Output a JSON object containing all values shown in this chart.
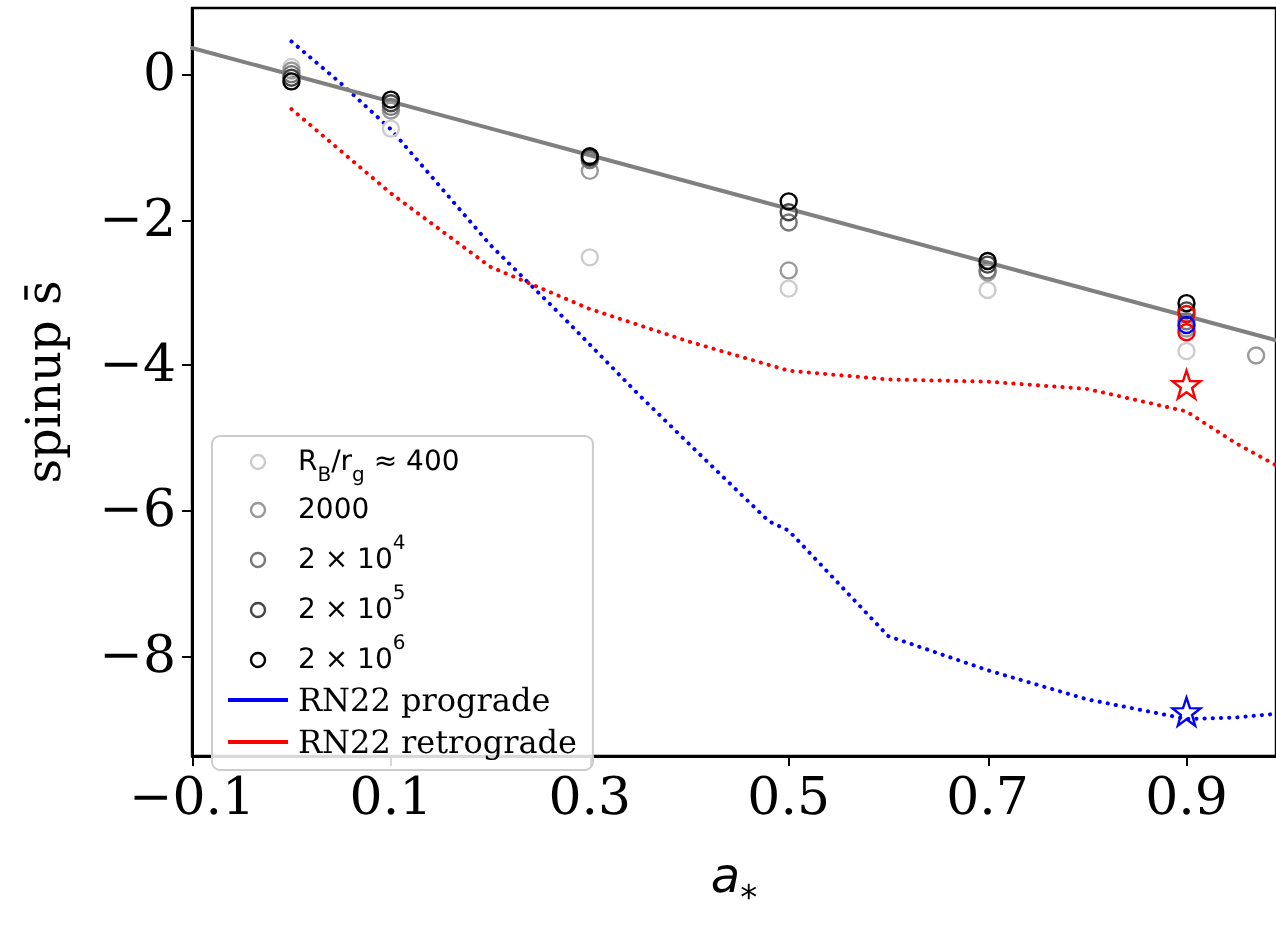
{
  "chart_data": {
    "type": "scatter",
    "xlabel": "a$_{*}$",
    "ylabel": "spinup s̄",
    "xlim": [
      -0.1,
      0.99
    ],
    "xticks": [
      {
        "value": -0.1,
        "label": "−0.1"
      },
      0.1,
      0.3,
      0.5,
      0.7,
      0.9
    ],
    "ylim": [
      -9.38,
      0.91
    ],
    "yticks": [
      {
        "value": -8,
        "label": "−8"
      },
      {
        "value": -6,
        "label": "−6"
      },
      {
        "value": -4,
        "label": "−4"
      },
      {
        "value": -2,
        "label": "−2"
      },
      0
    ],
    "grid": false,
    "legend": "bottom left",
    "marker": "circle",
    "series": [
      {
        "name": "R$_{B}$/r$_{g}$ ≈ 400",
        "color": "#cccccc",
        "x": [
          0,
          0.1,
          0.3,
          0.5,
          0.7,
          0.9
        ],
        "values": [
          0.1,
          -0.75,
          -2.52,
          -2.95,
          -2.97,
          -3.81
        ]
      },
      {
        "name": "2000",
        "color": "#999999",
        "x": [
          0,
          0.1,
          0.3,
          0.5,
          0.7,
          0.9,
          0.97
        ],
        "values": [
          0.05,
          -0.5,
          -1.33,
          -2.7,
          -2.73,
          -3.5,
          -3.87
        ]
      },
      {
        "name": "2 × 10$^{4}$",
        "color": "#777777",
        "x": [
          0,
          0.1,
          0.3,
          0.5,
          0.7,
          0.9
        ],
        "values": [
          0,
          -0.45,
          -1.18,
          -2.04,
          -2.7,
          -3.4
        ]
      },
      {
        "name": "2 × 10$^{5}$",
        "color": "#444444",
        "x": [
          0,
          0.1,
          0.3,
          0.5,
          0.7,
          0.9
        ],
        "values": [
          -0.05,
          -0.4,
          -1.15,
          -1.9,
          -2.62,
          -3.25
        ]
      },
      {
        "name": "2 × 10$^{6}$",
        "color": "#000000",
        "x": [
          0,
          0.1,
          0.3,
          0.5,
          0.7,
          0.9
        ],
        "values": [
          -0.1,
          -0.35,
          -1.13,
          -1.75,
          -2.57,
          -3.15
        ]
      },
      {
        "name": "RN22 prograde",
        "type": "line",
        "line_style": "dotted",
        "marker": "none",
        "color": "#0000ff",
        "x": [
          0,
          0.05,
          0.1,
          0.2,
          0.27,
          0.35,
          0.4,
          0.48,
          0.5,
          0.6,
          0.7,
          0.8,
          0.9,
          0.95,
          0.99
        ],
        "values": [
          0.45,
          -0.13,
          -0.76,
          -2.35,
          -3.3,
          -4.42,
          -5.09,
          -6.15,
          -6.28,
          -7.73,
          -8.2,
          -8.6,
          -8.87,
          -8.85,
          -8.8
        ]
      },
      {
        "name": "RN22 retrograde",
        "type": "line",
        "line_style": "dotted",
        "marker": "none",
        "color": "#ff0000",
        "x": [
          0,
          0.1,
          0.2,
          0.3,
          0.4,
          0.5,
          0.6,
          0.7,
          0.8,
          0.9,
          0.95,
          0.99
        ],
        "values": [
          -0.48,
          -1.64,
          -2.65,
          -3.23,
          -3.68,
          -4.08,
          -4.2,
          -4.23,
          -4.33,
          -4.64,
          -5.08,
          -5.38
        ]
      },
      {
        "type": "line",
        "line_style": "solid",
        "marker": "none",
        "color": "#808080",
        "x": [
          -0.1,
          0.99
        ],
        "values": [
          0.36,
          -3.66
        ]
      },
      {
        "color": "#ff0000",
        "x": [
          0.9,
          0.9
        ],
        "values": [
          -3.3,
          -3.55
        ]
      },
      {
        "color": "#0000ff",
        "x": [
          0.9
        ],
        "values": [
          -3.45
        ]
      },
      {
        "color": "#ff0000",
        "marker": "star",
        "x": [
          0.9
        ],
        "values": [
          -4.27
        ]
      },
      {
        "color": "#0000ff",
        "marker": "star",
        "x": [
          0.9
        ],
        "values": [
          -8.77
        ]
      }
    ]
  }
}
